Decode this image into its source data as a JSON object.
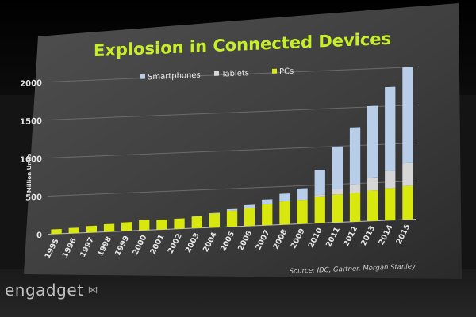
{
  "watermark": {
    "brand": "engadget"
  },
  "chart_data": {
    "type": "bar",
    "stacked": true,
    "title": "Explosion in Connected Devices",
    "ylabel": "Million Units",
    "xlabel": "",
    "ylim": [
      0,
      2000
    ],
    "yticks": [
      0,
      500,
      1000,
      1500,
      2000
    ],
    "categories": [
      "1995",
      "1996",
      "1997",
      "1998",
      "1999",
      "2000",
      "2001",
      "2002",
      "2003",
      "2004",
      "2005",
      "2006",
      "2007",
      "2008",
      "2009",
      "2010",
      "2011",
      "2012",
      "2013",
      "2014",
      "2015"
    ],
    "series": [
      {
        "name": "PCs",
        "color": "#d8e80e",
        "values": [
          60,
          70,
          85,
          100,
          115,
          135,
          130,
          135,
          155,
          185,
          210,
          235,
          275,
          305,
          315,
          350,
          365,
          380,
          400,
          420,
          440
        ]
      },
      {
        "name": "Tablets",
        "color": "#d6d6d6",
        "values": [
          0,
          0,
          0,
          0,
          0,
          0,
          0,
          0,
          0,
          0,
          0,
          0,
          0,
          0,
          0,
          20,
          70,
          110,
          170,
          230,
          300
        ]
      },
      {
        "name": "Smartphones",
        "color": "#b7cde8",
        "values": [
          0,
          0,
          0,
          0,
          0,
          0,
          0,
          0,
          0,
          5,
          20,
          40,
          65,
          100,
          150,
          330,
          560,
          750,
          940,
          1100,
          1260
        ]
      }
    ],
    "legend": {
      "position": "top-center",
      "order": [
        "Smartphones",
        "Tablets",
        "PCs"
      ]
    },
    "source": "Source: IDC, Gartner, Morgan Stanley",
    "grid": true
  }
}
